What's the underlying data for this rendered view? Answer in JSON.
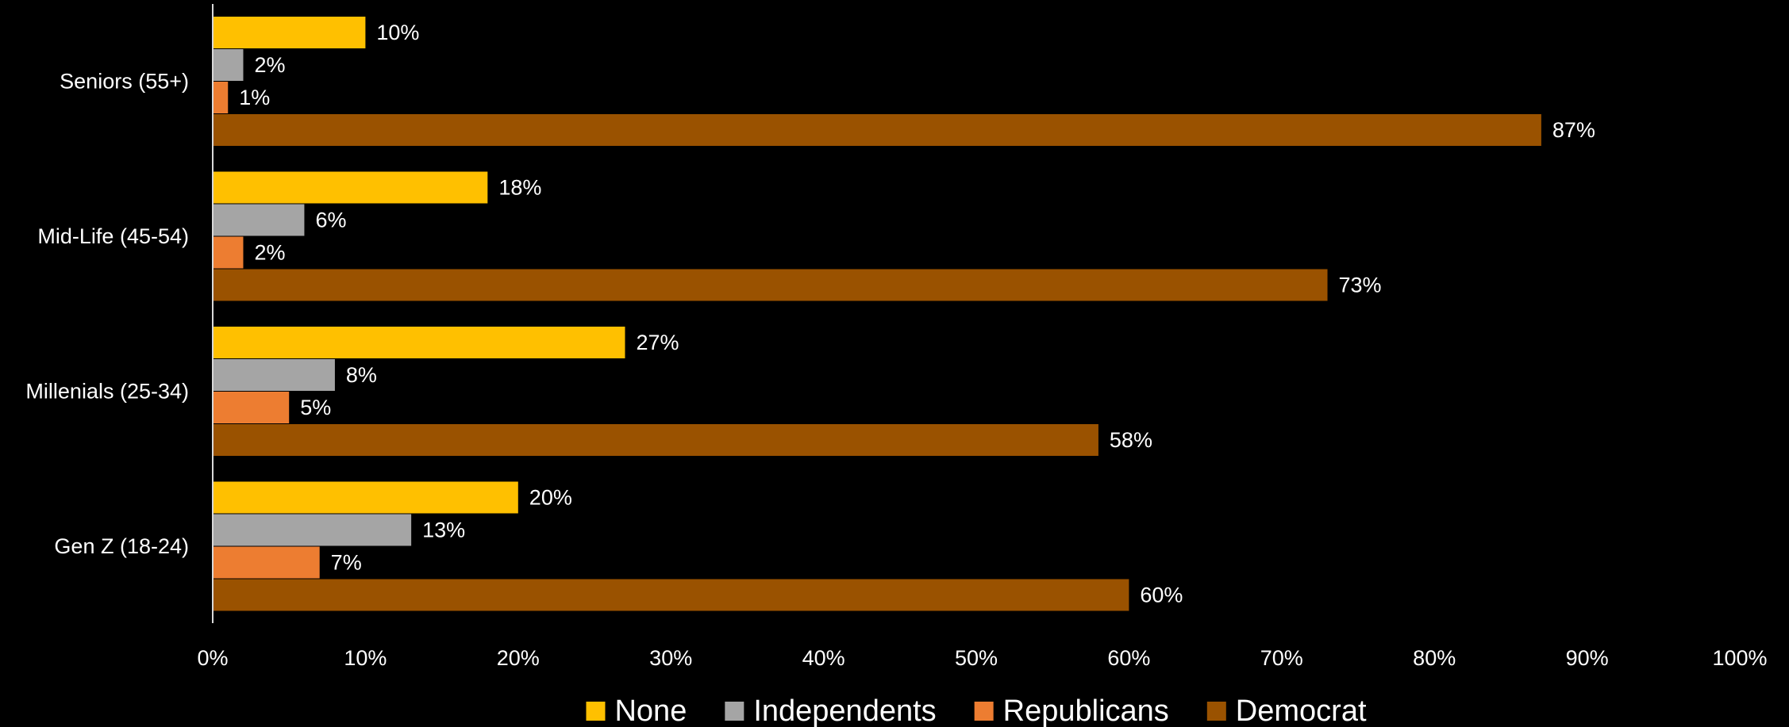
{
  "chart_data": {
    "type": "bar",
    "orientation": "horizontal",
    "categories": [
      "Seniors (55+)",
      "Mid-Life (45-54)",
      "Millenials (25-34)",
      "Gen Z (18-24)"
    ],
    "series": [
      {
        "name": "None",
        "color": "#FFC000",
        "values": [
          10,
          18,
          27,
          20
        ],
        "labels": [
          "10%",
          "18%",
          "27%",
          "20%"
        ]
      },
      {
        "name": "Independents",
        "color": "#A5A5A5",
        "values": [
          2,
          6,
          8,
          13
        ],
        "labels": [
          "2%",
          "6%",
          "8%",
          "13%"
        ]
      },
      {
        "name": "Republicans",
        "color": "#ED7D31",
        "values": [
          1,
          2,
          5,
          7
        ],
        "labels": [
          "1%",
          "2%",
          "5%",
          "7%"
        ]
      },
      {
        "name": "Democrat",
        "color": "#9A5200",
        "values": [
          87,
          73,
          58,
          60
        ],
        "labels": [
          "87%",
          "73%",
          "58%",
          "60%"
        ]
      }
    ],
    "x_ticks": [
      "0%",
      "10%",
      "20%",
      "30%",
      "40%",
      "50%",
      "60%",
      "70%",
      "80%",
      "90%",
      "100%"
    ],
    "xlim": [
      0,
      100
    ],
    "xlabel": "",
    "ylabel": "",
    "title": "",
    "grid": false,
    "legend": "bottom",
    "background": "#000000",
    "text_color": "#FFFFFF",
    "axis_color": "#D9D9D9"
  }
}
